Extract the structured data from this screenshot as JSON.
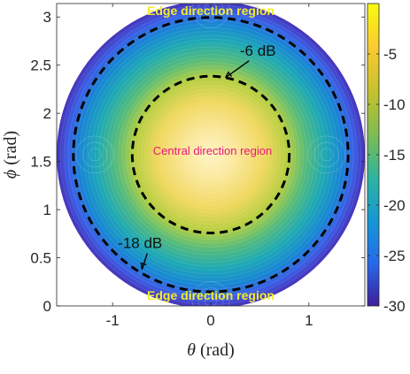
{
  "chart_data": {
    "type": "heatmap",
    "xlabel_symbol": "θ",
    "xlabel_unit": "(rad)",
    "ylabel_symbol": "ϕ",
    "ylabel_unit": "(rad)",
    "xlim": [
      -1.57,
      1.57
    ],
    "ylim": [
      0,
      3.14
    ],
    "x_ticks": [
      -1,
      0,
      1
    ],
    "x_tick_labels": [
      "-1",
      "0",
      "1"
    ],
    "y_ticks": [
      0,
      0.5,
      1,
      1.5,
      2,
      2.5,
      3
    ],
    "y_tick_labels": [
      "0",
      "0.5",
      "1",
      "1.5",
      "2",
      "2.5",
      "3"
    ],
    "colorbar": {
      "range": [
        -30,
        0
      ],
      "ticks": [
        -5,
        -10,
        -15,
        -20,
        -25,
        -30
      ],
      "tick_labels": [
        "-5",
        "-10",
        "-15",
        "-20",
        "-25",
        "-30"
      ],
      "colormap": "parula"
    },
    "region_center": [
      0,
      1.571
    ],
    "region_radius_rad": 1.57,
    "contours": [
      {
        "label": "-6 dB",
        "radius_rad": 0.8,
        "label_at": [
          0.48,
          2.6
        ],
        "arrow_to": [
          0.15,
          2.37
        ]
      },
      {
        "label": "-18 dB",
        "radius_rad": 1.4,
        "label_at": [
          -0.72,
          0.6
        ],
        "arrow_to": [
          -0.7,
          0.38
        ]
      }
    ],
    "annotations": {
      "top": "Edge direction region",
      "center": "Central direction region",
      "bottom": "Edge direction region"
    },
    "colors": {
      "dashed_contour": "#000000",
      "edge_label": "#f2ee2a",
      "center_label": "#e9157a"
    }
  }
}
